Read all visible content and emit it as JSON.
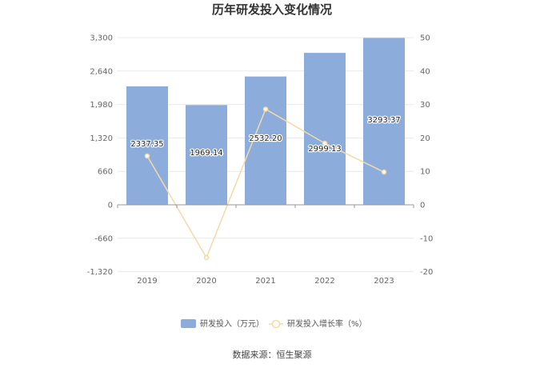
{
  "colors": {
    "bar": "#8caddc",
    "line": "#f5d9a8",
    "grid": "#e9e9e9",
    "axis": "#999999"
  },
  "chart_data": {
    "type": "bar",
    "title": "历年研发投入变化情况",
    "categories": [
      "2019",
      "2020",
      "2021",
      "2022",
      "2023"
    ],
    "series": [
      {
        "name": "研发投入（万元）",
        "type": "bar",
        "axis": "left",
        "values": [
          2337.35,
          1969.14,
          2532.2,
          2999.13,
          3293.37
        ],
        "labels": [
          "2337.35",
          "1969.14",
          "2532.20",
          "2999.13",
          "3293.37"
        ]
      },
      {
        "name": "研发投入增长率（%）",
        "type": "line",
        "axis": "right",
        "values": [
          14.6,
          -15.8,
          28.6,
          18.4,
          9.8
        ]
      }
    ],
    "y_left": {
      "min": -1320,
      "max": 3300,
      "ticks": [
        "3,300",
        "2,640",
        "1,980",
        "1,320",
        "660",
        "0",
        "-660",
        "-1,320"
      ],
      "tick_values": [
        3300,
        2640,
        1980,
        1320,
        660,
        0,
        -660,
        -1320
      ]
    },
    "y_right": {
      "min": -20,
      "max": 50,
      "ticks": [
        "50",
        "40",
        "30",
        "20",
        "10",
        "0",
        "-10",
        "-20"
      ],
      "tick_values": [
        50,
        40,
        30,
        20,
        10,
        0,
        -10,
        -20
      ]
    },
    "grid": true,
    "legend_position": "bottom"
  },
  "source": "数据来源：恒生聚源"
}
